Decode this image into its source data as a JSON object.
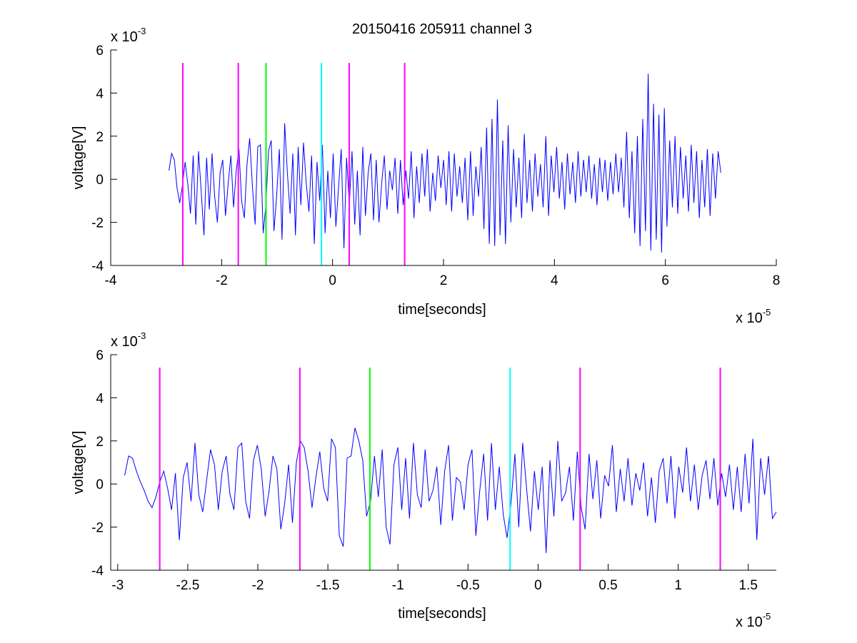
{
  "chart_data": [
    {
      "type": "line",
      "title": "20150416 205911 channel 3",
      "xlabel": "time[seconds]",
      "ylabel": "voltage[V]",
      "x_multiplier": "x 10",
      "x_exponent": "-5",
      "y_multiplier": "x 10",
      "y_exponent": "-3",
      "xlim": [
        -4e-05,
        8e-05
      ],
      "ylim": [
        -0.004,
        0.006
      ],
      "xticks": [
        -4e-05,
        -2e-05,
        0,
        2e-05,
        4e-05,
        6e-05,
        8e-05
      ],
      "xtick_labels": [
        "-4",
        "-2",
        "0",
        "2",
        "4",
        "6",
        "8"
      ],
      "yticks": [
        -0.004,
        -0.002,
        0,
        0.002,
        0.004,
        0.006
      ],
      "ytick_labels": [
        "-4",
        "-2",
        "0",
        "2",
        "4",
        "6"
      ],
      "grid": false,
      "signal": {
        "color": "#0000ff",
        "x_start": -2.95e-05,
        "x_end": 7e-05,
        "y": [
          0.0004,
          0.0012,
          0.0009,
          -0.0004,
          -0.0011,
          -0.0003,
          0.0008,
          -0.0002,
          -0.0016,
          0.0011,
          -0.0021,
          0.0013,
          -0.0006,
          -0.0026,
          0.001,
          -0.0014,
          0.0012,
          -0.0008,
          -0.002,
          0.0003,
          0.0009,
          -0.0017,
          -0.0002,
          0.0011,
          -0.0013,
          0.0004,
          0.0014,
          -0.001,
          -0.0018,
          0.0007,
          0.0019,
          -0.0003,
          -0.0021,
          0.0015,
          0.0016,
          -0.0025,
          -0.0012,
          0.0013,
          0.0018,
          -0.0024,
          -0.0008,
          0.0014,
          -0.0028,
          0.0026,
          0.0003,
          -0.0016,
          0.0012,
          -0.0026,
          0.0015,
          -0.0012,
          0.0017,
          -0.0002,
          -0.0015,
          0.0011,
          -0.003,
          0.0008,
          -0.001,
          0.0016,
          -0.0025,
          0.0004,
          -0.0018,
          0.0012,
          -0.0022,
          -0.0004,
          0.0014,
          -0.0032,
          0.001,
          -0.0012,
          0.0013,
          -0.0021,
          0.0004,
          -0.0026,
          0.0015,
          -0.0017,
          0.0003,
          0.0012,
          -0.0019,
          0.0009,
          -0.002,
          -0.0002,
          0.0011,
          -0.0014,
          0.0004,
          -0.0005,
          0.001,
          -0.0016,
          0.0009,
          -0.0012,
          0.0004,
          -0.0009,
          0.0013,
          -0.0018,
          0.0006,
          -0.0011,
          0.0012,
          -0.0008,
          0.0014,
          -0.0015,
          0.0003,
          -0.001,
          0.0011,
          -0.0004,
          0.0009,
          -0.0012,
          0.0013,
          -0.0015,
          0.0012,
          -0.0008,
          0.0006,
          -0.0011,
          0.001,
          -0.0019,
          0.0013,
          -0.0017,
          0.0006,
          -0.0008,
          0.0015,
          -0.0023,
          0.0024,
          -0.003,
          0.0028,
          -0.0031,
          0.0037,
          -0.0026,
          0.0018,
          -0.003,
          0.0025,
          -0.002,
          0.0014,
          -0.0013,
          0.001,
          -0.0018,
          0.0021,
          -0.0011,
          0.0009,
          -0.0015,
          0.0012,
          -0.0008,
          0.0007,
          -0.0013,
          0.002,
          -0.0017,
          0.0011,
          -0.0006,
          0.0015,
          -0.0009,
          0.0008,
          -0.0014,
          0.0012,
          -0.0007,
          0.0008,
          -0.0011,
          0.0013,
          -0.0008,
          0.0009,
          -0.0006,
          0.0011,
          -0.0009,
          0.0007,
          -0.0012,
          0.001,
          -0.0006,
          0.0009,
          -0.001,
          0.0008,
          -0.0007,
          0.0012,
          -0.0006,
          0.001,
          -0.0013,
          0.0022,
          -0.0018,
          0.0013,
          -0.0025,
          0.002,
          -0.0031,
          0.0028,
          -0.0024,
          0.0049,
          -0.0033,
          0.0035,
          -0.0028,
          0.003,
          -0.0034,
          0.0033,
          -0.0022,
          0.0018,
          -0.0013,
          0.002,
          -0.0016,
          0.0015,
          -0.0009,
          0.0011,
          -0.0015,
          0.0016,
          -0.0011,
          0.0013,
          -0.0018,
          0.0009,
          -0.0013,
          0.0014,
          -0.0017,
          0.0012,
          -0.0009,
          0.0013,
          0.0003
        ]
      },
      "markers": [
        {
          "x": -2.7e-05,
          "color": "#ff00ff"
        },
        {
          "x": -1.7e-05,
          "color": "#ff00ff"
        },
        {
          "x": -1.2e-05,
          "color": "#00ff00"
        },
        {
          "x": -2e-06,
          "color": "#00ffff"
        },
        {
          "x": 3e-06,
          "color": "#ff00ff"
        },
        {
          "x": 1.3e-05,
          "color": "#ff00ff"
        }
      ],
      "marker_range": [
        -0.004,
        0.0054
      ]
    },
    {
      "type": "line",
      "title": "",
      "xlabel": "time[seconds]",
      "ylabel": "voltage[V]",
      "x_multiplier": "x 10",
      "x_exponent": "-5",
      "y_multiplier": "x 10",
      "y_exponent": "-3",
      "xlim": [
        -3.05e-05,
        1.7e-05
      ],
      "ylim": [
        -0.004,
        0.006
      ],
      "xticks": [
        -3e-05,
        -2.5e-05,
        -2e-05,
        -1.5e-05,
        -1e-05,
        -5e-06,
        0,
        5e-06,
        1e-05,
        1.5e-05
      ],
      "xtick_labels": [
        "-3",
        "-2.5",
        "-2",
        "-1.5",
        "-1",
        "-0.5",
        "0",
        "0.5",
        "1",
        "1.5"
      ],
      "yticks": [
        -0.004,
        -0.002,
        0,
        0.002,
        0.004,
        0.006
      ],
      "ytick_labels": [
        "-4",
        "-2",
        "0",
        "2",
        "4",
        "6"
      ],
      "grid": false,
      "signal": {
        "color": "#0000ff",
        "x_start": -2.95e-05,
        "x_end": 1.7e-05,
        "y": [
          0.0004,
          0.0013,
          0.0012,
          0.0006,
          0.0001,
          -0.0003,
          -0.0008,
          -0.0011,
          -0.0006,
          0.0001,
          0.0006,
          -0.0002,
          -0.0012,
          0.0005,
          -0.0026,
          0.0003,
          0.001,
          -0.0008,
          0.0019,
          -0.0005,
          -0.0013,
          0.0002,
          0.0016,
          0.0009,
          -0.0012,
          0.0006,
          0.0013,
          -0.0005,
          -0.0012,
          0.0017,
          0.0019,
          -0.0008,
          -0.0016,
          0.0011,
          0.0018,
          0.0007,
          -0.0015,
          -0.0003,
          0.0013,
          0.0007,
          -0.0021,
          -0.0009,
          0.0009,
          -0.0018,
          0.001,
          0.002,
          0.0017,
          0.0006,
          -0.0011,
          0.0003,
          0.0015,
          -0.0002,
          -0.0008,
          0.0021,
          0.0017,
          -0.0024,
          -0.0029,
          0.0012,
          0.0013,
          0.0026,
          0.002,
          0.0011,
          -0.0015,
          -0.0008,
          0.0013,
          -0.0006,
          0.0016,
          -0.002,
          -0.0028,
          0.0009,
          0.0017,
          -0.0012,
          0.0012,
          -0.0016,
          0.0019,
          -0.0005,
          -0.0011,
          0.0016,
          -0.0008,
          -0.0003,
          0.0008,
          -0.0019,
          0.0006,
          0.0018,
          -0.0017,
          0.0003,
          0.0001,
          -0.0012,
          0.0009,
          0.0016,
          -0.0024,
          -0.0003,
          0.0014,
          -0.0017,
          0.0019,
          -0.0012,
          0.0008,
          -0.0014,
          -0.0025,
          -0.0009,
          0.0014,
          -0.002,
          0.0019,
          -0.0002,
          -0.0022,
          0.0006,
          -0.0012,
          0.0008,
          -0.0032,
          0.0011,
          -0.0015,
          0.002,
          -0.0008,
          -0.0004,
          0.0008,
          -0.0017,
          0.0015,
          -0.0011,
          -0.0021,
          0.0014,
          -0.0007,
          0.0011,
          -0.0016,
          0.0004,
          -0.0001,
          0.0018,
          -0.0013,
          0.0007,
          -0.0008,
          0.0012,
          -0.001,
          0.0005,
          -0.0003,
          0.001,
          -0.0015,
          0.0003,
          -0.0018,
          0.0006,
          0.0012,
          -0.0009,
          0.0013,
          -0.0016,
          0.0008,
          -0.0004,
          0.0017,
          -0.0008,
          0.0009,
          -0.0012,
          0.0004,
          0.0011,
          -0.0007,
          0.0012,
          -0.001,
          0.0005,
          -0.0006,
          0.0009,
          -0.0012,
          0.0008,
          -0.0013,
          0.0014,
          -0.0009,
          0.0021,
          -0.0026,
          0.0012,
          -0.0005,
          0.0013,
          -0.0016,
          -0.0013
        ]
      },
      "markers": [
        {
          "x": -2.7e-05,
          "color": "#ff00ff"
        },
        {
          "x": -1.7e-05,
          "color": "#ff00ff"
        },
        {
          "x": -1.2e-05,
          "color": "#00ff00"
        },
        {
          "x": -2e-06,
          "color": "#00ffff"
        },
        {
          "x": 3e-06,
          "color": "#ff00ff"
        },
        {
          "x": 1.3e-05,
          "color": "#ff00ff"
        }
      ],
      "marker_range": [
        -0.004,
        0.0054
      ]
    }
  ]
}
